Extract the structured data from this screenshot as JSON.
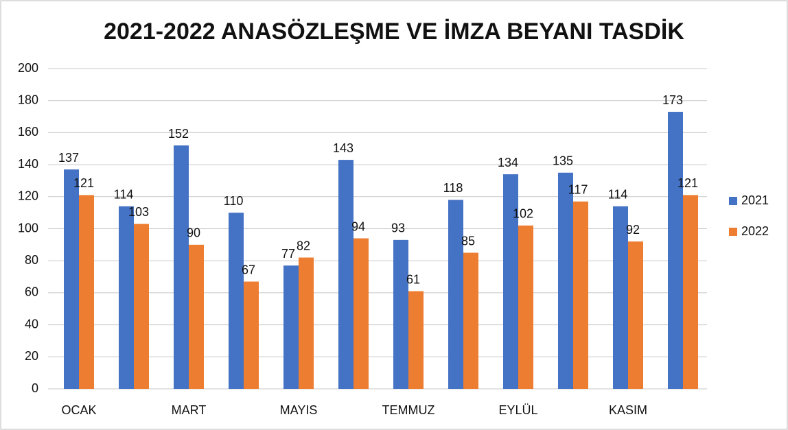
{
  "chart_data": {
    "type": "bar",
    "title": "2021-2022 ANASÖZLEŞME VE İMZA BEYANI TASDİK",
    "categories": [
      "OCAK",
      null,
      "MART",
      null,
      "MAYIS",
      null,
      "TEMMUZ",
      null,
      "EYLÜL",
      null,
      "KASIM",
      null
    ],
    "series": [
      {
        "name": "2021",
        "color": "#4472c4",
        "values": [
          137,
          114,
          152,
          110,
          77,
          143,
          93,
          118,
          134,
          135,
          114,
          173
        ]
      },
      {
        "name": "2022",
        "color": "#ed7d31",
        "values": [
          121,
          103,
          90,
          67,
          82,
          94,
          61,
          85,
          102,
          117,
          92,
          121
        ]
      }
    ],
    "ylim": [
      0,
      200
    ],
    "yticks": [
      0,
      20,
      40,
      60,
      80,
      100,
      120,
      140,
      160,
      180,
      200
    ],
    "grid": true,
    "legend": "right"
  }
}
